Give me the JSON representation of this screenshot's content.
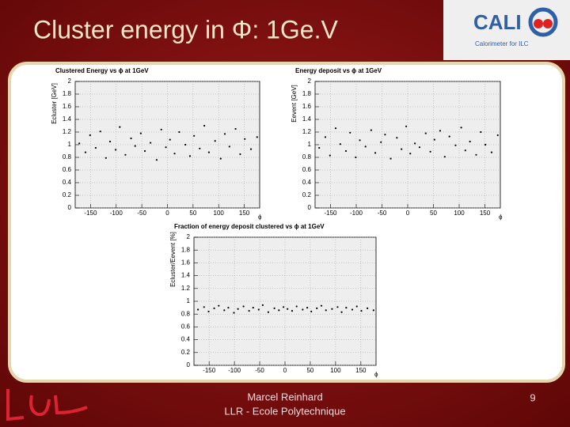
{
  "slide": {
    "title": "Cluster energy in Φ: 1Ge.V",
    "logo": {
      "name": "CALI",
      "tagline": "Calorimeter for ILC"
    },
    "footer": {
      "author": "Marcel Reinhard",
      "affiliation": "LLR - Ecole Polytechnique",
      "page": "9"
    }
  },
  "chart_data": [
    {
      "type": "scatter",
      "title": "Clustered Energy vs ϕ at 1GeV",
      "x_label": "ϕ",
      "y_label": "Ecluster [GeV]",
      "color": "#000000",
      "grid": true,
      "xlim": [
        -180,
        180
      ],
      "ylim": [
        0,
        2
      ],
      "xticks": [
        -150,
        -100,
        -50,
        0,
        50,
        100,
        150
      ],
      "yticks": [
        0,
        0.2,
        0.4,
        0.6,
        0.8,
        1,
        1.2,
        1.4,
        1.6,
        1.8,
        2
      ],
      "x": [
        -172,
        -160,
        -151,
        -140,
        -131,
        -120,
        -112,
        -101,
        -93,
        -82,
        -71,
        -63,
        -52,
        -44,
        -33,
        -21,
        -12,
        -3,
        5,
        14,
        23,
        35,
        44,
        52,
        63,
        72,
        81,
        93,
        104,
        112,
        121,
        133,
        142,
        151,
        163,
        175
      ],
      "y": [
        1.02,
        0.88,
        1.15,
        0.95,
        1.21,
        0.79,
        1.05,
        0.92,
        1.28,
        0.84,
        1.1,
        0.98,
        1.18,
        0.9,
        1.03,
        0.76,
        1.24,
        0.96,
        1.08,
        0.86,
        1.2,
        1.0,
        0.82,
        1.14,
        0.94,
        1.3,
        0.88,
        1.06,
        0.78,
        1.17,
        0.97,
        1.25,
        0.85,
        1.09,
        0.93,
        1.12
      ]
    },
    {
      "type": "scatter",
      "title": "Energy deposit vs ϕ at 1GeV",
      "x_label": "ϕ",
      "y_label": "Eevent [GeV]",
      "color": "#000000",
      "grid": true,
      "xlim": [
        -180,
        180
      ],
      "ylim": [
        0,
        2
      ],
      "xticks": [
        -150,
        -100,
        -50,
        0,
        50,
        100,
        150
      ],
      "yticks": [
        0,
        0.2,
        0.4,
        0.6,
        0.8,
        1,
        1.2,
        1.4,
        1.6,
        1.8,
        2
      ],
      "x": [
        -172,
        -160,
        -151,
        -140,
        -131,
        -120,
        -112,
        -101,
        -93,
        -82,
        -71,
        -63,
        -52,
        -44,
        -33,
        -21,
        -12,
        -3,
        5,
        14,
        23,
        35,
        44,
        52,
        63,
        72,
        81,
        93,
        104,
        112,
        121,
        133,
        142,
        151,
        163,
        175
      ],
      "y": [
        0.95,
        1.12,
        0.83,
        1.26,
        1.01,
        0.9,
        1.19,
        0.8,
        1.07,
        0.97,
        1.23,
        0.87,
        1.04,
        1.16,
        0.78,
        1.11,
        0.93,
        1.29,
        0.86,
        1.02,
        0.96,
        1.18,
        0.89,
        1.08,
        1.22,
        0.81,
        1.13,
        0.99,
        1.27,
        0.91,
        1.05,
        0.84,
        1.2,
        1.0,
        0.88,
        1.15
      ]
    },
    {
      "type": "scatter",
      "title": "Fraction of energy deposit clustered vs ϕ at 1GeV",
      "x_label": "ϕ",
      "y_label": "Ecluster/Eevent [%]",
      "color": "#000000",
      "grid": true,
      "xlim": [
        -180,
        180
      ],
      "ylim": [
        0,
        2
      ],
      "xticks": [
        -150,
        -100,
        -50,
        0,
        50,
        100,
        150
      ],
      "yticks": [
        0,
        0.2,
        0.4,
        0.6,
        0.8,
        1,
        1.2,
        1.4,
        1.6,
        1.8,
        2
      ],
      "x": [
        -172,
        -160,
        -151,
        -140,
        -131,
        -120,
        -112,
        -101,
        -93,
        -82,
        -71,
        -63,
        -52,
        -44,
        -33,
        -21,
        -12,
        -3,
        5,
        14,
        23,
        35,
        44,
        52,
        63,
        72,
        81,
        93,
        104,
        112,
        121,
        133,
        142,
        151,
        163,
        175
      ],
      "y": [
        0.87,
        0.91,
        0.84,
        0.89,
        0.93,
        0.86,
        0.9,
        0.82,
        0.88,
        0.92,
        0.85,
        0.9,
        0.87,
        0.94,
        0.83,
        0.89,
        0.86,
        0.91,
        0.88,
        0.85,
        0.92,
        0.87,
        0.9,
        0.84,
        0.89,
        0.93,
        0.86,
        0.88,
        0.91,
        0.83,
        0.9,
        0.87,
        0.92,
        0.85,
        0.89,
        0.86
      ]
    }
  ]
}
